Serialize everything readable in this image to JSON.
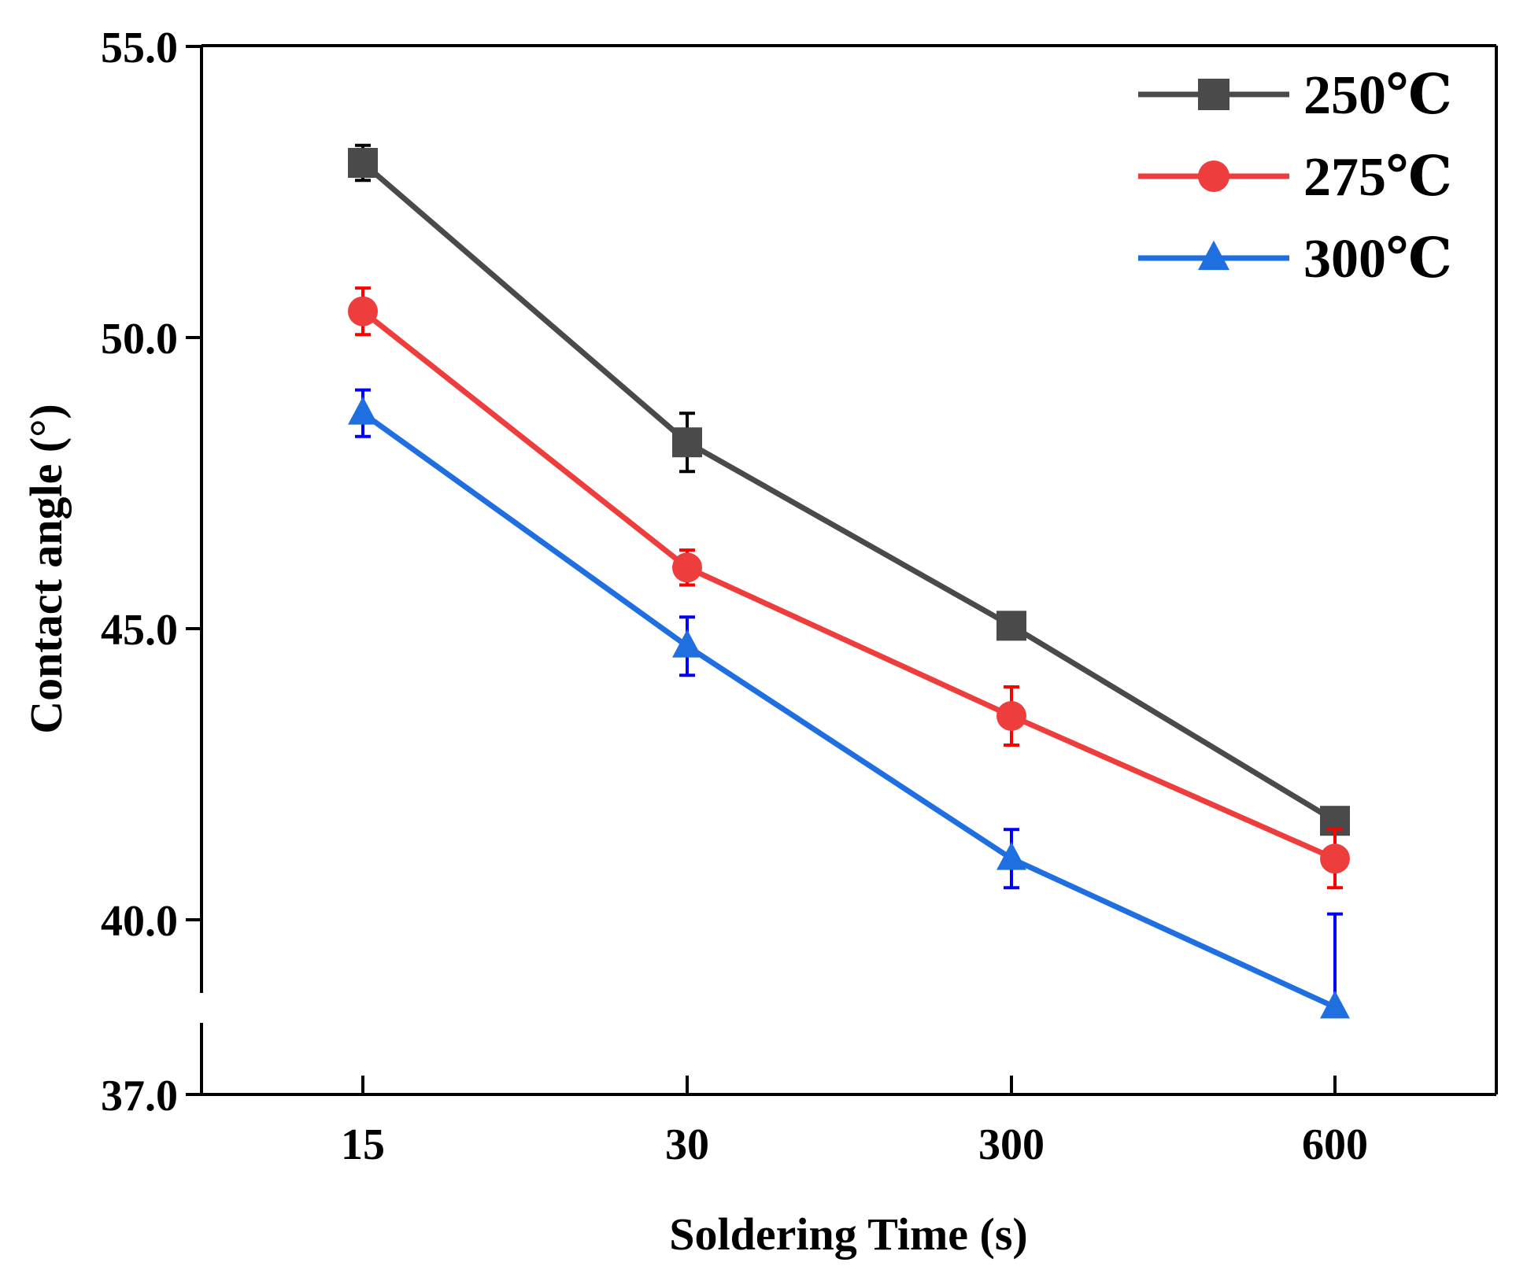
{
  "chart_data": {
    "type": "line",
    "xlabel": "Soldering Time (s)",
    "ylabel": "Contact angle (°)",
    "categories": [
      "15",
      "30",
      "300",
      "600"
    ],
    "yticks": [
      "37.0",
      "40.0",
      "45.0",
      "50.0",
      "55.0"
    ],
    "ylim": [
      37,
      55
    ],
    "y_axis_break": [
      38.2,
      39.6
    ],
    "grid": false,
    "legend_position": "top-right",
    "series": [
      {
        "name": "250℃",
        "color": "#4a4a4a",
        "errColor": "#000000",
        "marker": "square",
        "values": [
          53.0,
          48.2,
          45.05,
          41.7
        ],
        "errors": [
          0.3,
          0.5,
          0.2,
          0.15
        ]
      },
      {
        "name": "275℃",
        "color": "#ee3d3d",
        "errColor": "#ff0000",
        "marker": "circle",
        "values": [
          50.45,
          46.05,
          43.5,
          41.05
        ],
        "errors": [
          0.4,
          0.3,
          0.5,
          0.5
        ]
      },
      {
        "name": "300℃",
        "color": "#1f6fe0",
        "errColor": "#0000ff",
        "marker": "triangle",
        "values": [
          48.7,
          44.7,
          41.05,
          39.5
        ],
        "errors": [
          0.4,
          0.5,
          0.5,
          0.6
        ]
      }
    ]
  }
}
